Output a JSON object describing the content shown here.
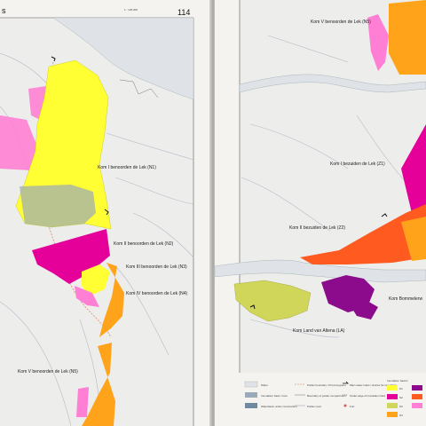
{
  "book": {
    "left_page": {
      "page_number": "114",
      "scale": "1 : 125,000",
      "running_head_fragment": "s",
      "labels": {
        "n1": "Kom I benoorden de Lek (N1)",
        "n2": "Kom II benoorden de Lek (N2)",
        "n3": "Kom III benoorden de Lek (N3)",
        "n4": "Kom IV benoorden de Lek (N4)",
        "n5": "Kom V benoorden de Lek (N5)"
      }
    },
    "right_page": {
      "labels": {
        "n5": "Kom V benoorden de Lek (N5)",
        "z1": "Kom I bezuiden de Lek (Z1)",
        "z2": "Kom II bezuiden de Lek (Z2)",
        "la": "Kom Land van Altena (LA)",
        "bommel": "Kom Bommelerw"
      },
      "legend": {
        "water": "Water",
        "inundation_basin": "Inundation basin / kom",
        "waterbasin": "Waterbasin under construction",
        "boundary_province": "Polder boundary / Provincegrens",
        "boundary_compartment": "Boundary of polder compartment",
        "polder_road": "Polder road",
        "main_water_inlets": "Main water inlets / sluices for inundation",
        "outlet_inundation": "Outlet edge of inundation field",
        "fort": "Fort",
        "inundation_basins": "Inundation basins",
        "n1": "N1",
        "n2": "N2",
        "n3": "N3",
        "n4": "N4"
      }
    }
  },
  "colors": {
    "paper": "#f4f3f0",
    "water": "#dfe3e8",
    "yellow": "#ffff33",
    "magenta": "#e6009a",
    "pink": "#ff7fd4",
    "orange": "#ffa31a",
    "orange_red": "#ff5a1f",
    "olive": "#cfd65a",
    "purple": "#8c0a8c",
    "blue_grey": "#9aaab8"
  }
}
